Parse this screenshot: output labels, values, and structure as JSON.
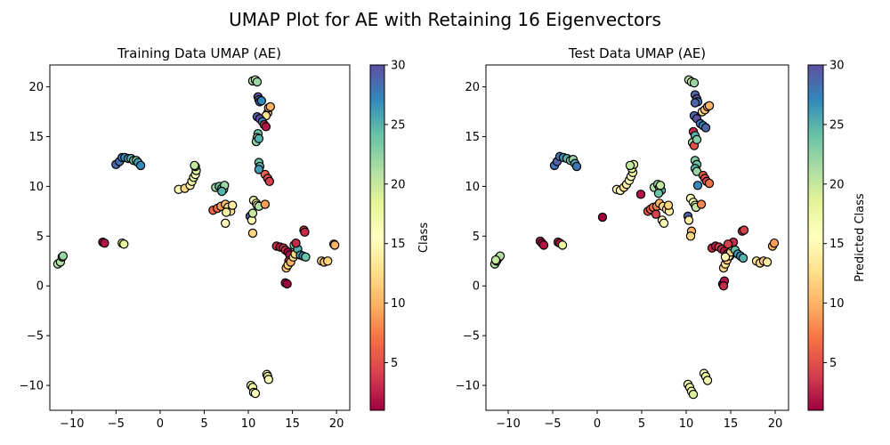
{
  "figure": {
    "title": "UMAP Plot for AE with Retaining 16 Eigenvectors"
  },
  "chart_data": [
    {
      "type": "scatter",
      "title": "Training Data UMAP (AE)",
      "xlabel": "",
      "ylabel": "",
      "xlim": [
        -12.5,
        21.5
      ],
      "ylim": [
        -12.5,
        22.2
      ],
      "xticks": [
        "−10",
        "−5",
        "0",
        "5",
        "10",
        "15",
        "20"
      ],
      "xtick_values": [
        -10,
        -5,
        0,
        5,
        10,
        15,
        20
      ],
      "yticks": [
        "−10",
        "−5",
        "0",
        "5",
        "10",
        "15",
        "20"
      ],
      "ytick_values": [
        -10,
        -5,
        0,
        5,
        10,
        15,
        20
      ],
      "colorbar": {
        "label": "Class",
        "min": 1,
        "max": 30,
        "ticks": [
          "5",
          "10",
          "15",
          "20",
          "25",
          "30"
        ],
        "tick_values": [
          5,
          10,
          15,
          20,
          25,
          30
        ]
      },
      "points": [
        [
          -11.6,
          2.2,
          21
        ],
        [
          -11.3,
          2.4,
          21
        ],
        [
          -11.1,
          2.9,
          22
        ],
        [
          -11.0,
          3.0,
          22
        ],
        [
          -6.5,
          4.4,
          2
        ],
        [
          -6.3,
          4.3,
          2
        ],
        [
          -4.3,
          4.3,
          18
        ],
        [
          -4.1,
          4.2,
          18
        ],
        [
          -5.0,
          12.2,
          29
        ],
        [
          -4.6,
          12.5,
          28
        ],
        [
          -4.3,
          12.9,
          28
        ],
        [
          -4.0,
          12.9,
          27
        ],
        [
          -3.6,
          12.8,
          26
        ],
        [
          -3.3,
          12.8,
          25
        ],
        [
          -3.0,
          12.6,
          24
        ],
        [
          -2.7,
          12.6,
          23
        ],
        [
          -2.5,
          12.4,
          26
        ],
        [
          -2.2,
          12.1,
          27
        ],
        [
          2.1,
          9.7,
          15
        ],
        [
          2.8,
          9.8,
          12
        ],
        [
          3.4,
          10.1,
          14
        ],
        [
          3.6,
          10.5,
          17
        ],
        [
          3.8,
          10.9,
          18
        ],
        [
          4.0,
          11.2,
          16
        ],
        [
          4.1,
          11.6,
          19
        ],
        [
          4.0,
          12.0,
          20
        ],
        [
          3.9,
          12.1,
          20
        ],
        [
          6.0,
          7.6,
          6
        ],
        [
          6.5,
          7.8,
          7
        ],
        [
          6.9,
          8.0,
          9
        ],
        [
          7.4,
          8.2,
          11
        ],
        [
          7.7,
          7.9,
          12
        ],
        [
          8.0,
          7.5,
          13
        ],
        [
          8.2,
          8.1,
          14
        ],
        [
          7.5,
          7.4,
          14
        ],
        [
          7.4,
          6.3,
          15
        ],
        [
          6.3,
          9.9,
          22
        ],
        [
          6.7,
          10.0,
          24
        ],
        [
          7.0,
          9.8,
          23
        ],
        [
          7.2,
          9.7,
          21
        ],
        [
          7.3,
          10.1,
          22
        ],
        [
          7.0,
          9.5,
          25
        ],
        [
          10.2,
          7.0,
          29
        ],
        [
          10.4,
          6.6,
          16
        ],
        [
          10.5,
          7.3,
          20
        ],
        [
          10.6,
          8.6,
          17
        ],
        [
          10.9,
          8.3,
          14
        ],
        [
          11.0,
          8.1,
          16
        ],
        [
          11.2,
          8.0,
          21
        ],
        [
          10.5,
          5.3,
          12
        ],
        [
          11.9,
          8.2,
          9
        ],
        [
          10.5,
          20.6,
          21
        ],
        [
          10.8,
          20.7,
          20
        ],
        [
          11.0,
          20.5,
          22
        ],
        [
          11.1,
          19.0,
          30
        ],
        [
          11.2,
          18.7,
          28
        ],
        [
          11.3,
          18.5,
          29
        ],
        [
          11.5,
          18.6,
          27
        ],
        [
          12.2,
          17.4,
          11
        ],
        [
          12.3,
          17.9,
          9
        ],
        [
          12.5,
          18.0,
          10
        ],
        [
          12.0,
          17.1,
          13
        ],
        [
          11.0,
          17.0,
          29
        ],
        [
          11.3,
          16.8,
          30
        ],
        [
          11.6,
          16.5,
          27
        ],
        [
          11.8,
          16.2,
          3
        ],
        [
          12.0,
          16.0,
          2
        ],
        [
          11.1,
          15.3,
          24
        ],
        [
          11.0,
          14.9,
          22
        ],
        [
          10.9,
          14.5,
          23
        ],
        [
          11.2,
          14.8,
          25
        ],
        [
          11.2,
          12.4,
          24
        ],
        [
          11.3,
          12.0,
          25
        ],
        [
          11.2,
          11.7,
          26
        ],
        [
          11.9,
          11.2,
          6
        ],
        [
          12.2,
          10.8,
          5
        ],
        [
          12.4,
          10.5,
          4
        ],
        [
          13.2,
          4.0,
          3
        ],
        [
          13.6,
          3.9,
          2
        ],
        [
          14.0,
          3.8,
          4
        ],
        [
          14.2,
          3.6,
          3
        ],
        [
          14.5,
          3.4,
          1
        ],
        [
          14.7,
          3.1,
          2
        ],
        [
          14.6,
          2.5,
          4
        ],
        [
          14.3,
          1.8,
          11
        ],
        [
          14.5,
          2.1,
          12
        ],
        [
          14.8,
          2.4,
          10
        ],
        [
          15.1,
          2.9,
          13
        ],
        [
          15.3,
          3.2,
          12
        ],
        [
          15.2,
          4.1,
          23
        ],
        [
          15.6,
          3.7,
          25
        ],
        [
          15.9,
          3.1,
          26
        ],
        [
          16.2,
          3.0,
          27
        ],
        [
          16.5,
          2.9,
          24
        ],
        [
          15.4,
          4.3,
          3
        ],
        [
          16.3,
          5.6,
          4
        ],
        [
          16.4,
          5.4,
          3
        ],
        [
          14.2,
          0.3,
          2
        ],
        [
          14.4,
          0.2,
          1
        ],
        [
          18.3,
          2.5,
          13
        ],
        [
          18.6,
          2.4,
          11
        ],
        [
          19.0,
          2.5,
          12
        ],
        [
          19.7,
          4.2,
          9
        ],
        [
          19.8,
          4.1,
          10
        ],
        [
          12.1,
          -8.9,
          17
        ],
        [
          12.2,
          -9.1,
          18
        ],
        [
          12.3,
          -9.4,
          16
        ],
        [
          10.3,
          -10.0,
          18
        ],
        [
          10.5,
          -10.2,
          17
        ],
        [
          10.6,
          -10.7,
          19
        ],
        [
          10.8,
          -10.8,
          16
        ]
      ]
    },
    {
      "type": "scatter",
      "title": "Test Data UMAP (AE)",
      "xlabel": "",
      "ylabel": "",
      "xlim": [
        -12.5,
        21.5
      ],
      "ylim": [
        -12.5,
        22.2
      ],
      "xticks": [
        "−10",
        "−5",
        "0",
        "5",
        "10",
        "15",
        "20"
      ],
      "xtick_values": [
        -10,
        -5,
        0,
        5,
        10,
        15,
        20
      ],
      "yticks": [
        "−10",
        "−5",
        "0",
        "5",
        "10",
        "15",
        "20"
      ],
      "ytick_values": [
        -10,
        -5,
        0,
        5,
        10,
        15,
        20
      ],
      "colorbar": {
        "label": "Predicted Class",
        "min": 1,
        "max": 30,
        "ticks": [
          "5",
          "10",
          "15",
          "20",
          "25",
          "30"
        ],
        "tick_values": [
          5,
          10,
          15,
          20,
          25,
          30
        ]
      },
      "points": [
        [
          -11.5,
          2.2,
          21
        ],
        [
          -11.3,
          2.5,
          22
        ],
        [
          -11.1,
          2.8,
          23
        ],
        [
          -10.9,
          3.0,
          21
        ],
        [
          -11.4,
          2.6,
          20
        ],
        [
          -6.4,
          4.5,
          2
        ],
        [
          -6.2,
          4.3,
          1
        ],
        [
          -6.0,
          4.1,
          2
        ],
        [
          -4.4,
          4.4,
          3
        ],
        [
          -4.2,
          4.3,
          2
        ],
        [
          -3.9,
          4.1,
          18
        ],
        [
          -4.8,
          12.1,
          28
        ],
        [
          -4.5,
          12.5,
          29
        ],
        [
          -4.2,
          13.0,
          28
        ],
        [
          -3.8,
          12.9,
          27
        ],
        [
          -3.4,
          12.8,
          25
        ],
        [
          -3.0,
          12.6,
          24
        ],
        [
          -2.7,
          12.7,
          22
        ],
        [
          -2.5,
          12.3,
          26
        ],
        [
          -2.3,
          12.0,
          28
        ],
        [
          2.2,
          9.7,
          15
        ],
        [
          2.6,
          9.6,
          16
        ],
        [
          3.0,
          9.9,
          13
        ],
        [
          3.3,
          10.2,
          14
        ],
        [
          3.6,
          10.6,
          15
        ],
        [
          3.8,
          11.0,
          16
        ],
        [
          4.0,
          11.4,
          17
        ],
        [
          3.9,
          11.8,
          18
        ],
        [
          4.1,
          12.2,
          19
        ],
        [
          3.7,
          12.1,
          20
        ],
        [
          0.6,
          6.9,
          1
        ],
        [
          4.9,
          9.2,
          2
        ],
        [
          5.7,
          7.5,
          5
        ],
        [
          6.0,
          7.7,
          6
        ],
        [
          6.3,
          7.9,
          7
        ],
        [
          6.7,
          8.0,
          8
        ],
        [
          7.0,
          8.3,
          10
        ],
        [
          7.4,
          8.0,
          12
        ],
        [
          7.8,
          7.7,
          13
        ],
        [
          8.1,
          7.5,
          14
        ],
        [
          8.0,
          8.1,
          12
        ],
        [
          7.3,
          6.6,
          15
        ],
        [
          7.5,
          6.3,
          16
        ],
        [
          6.6,
          7.2,
          4
        ],
        [
          6.4,
          9.9,
          21
        ],
        [
          6.8,
          10.2,
          22
        ],
        [
          7.0,
          9.9,
          23
        ],
        [
          7.2,
          9.6,
          25
        ],
        [
          6.9,
          9.3,
          24
        ],
        [
          7.1,
          10.1,
          20
        ],
        [
          10.2,
          7.0,
          29
        ],
        [
          10.3,
          6.6,
          14
        ],
        [
          10.5,
          8.8,
          16
        ],
        [
          10.8,
          8.4,
          17
        ],
        [
          11.0,
          8.1,
          18
        ],
        [
          11.1,
          7.9,
          20
        ],
        [
          10.6,
          5.5,
          10
        ],
        [
          10.5,
          5.0,
          12
        ],
        [
          11.7,
          8.2,
          8
        ],
        [
          11.3,
          10.1,
          27
        ],
        [
          10.3,
          20.7,
          21
        ],
        [
          10.6,
          20.5,
          19
        ],
        [
          10.9,
          20.4,
          22
        ],
        [
          11.0,
          19.2,
          29
        ],
        [
          11.2,
          18.8,
          30
        ],
        [
          11.3,
          18.5,
          28
        ],
        [
          11.0,
          18.4,
          29
        ],
        [
          11.8,
          17.5,
          13
        ],
        [
          12.1,
          17.7,
          11
        ],
        [
          12.4,
          18.0,
          9
        ],
        [
          12.6,
          18.1,
          10
        ],
        [
          10.9,
          17.1,
          29
        ],
        [
          11.2,
          16.8,
          30
        ],
        [
          11.6,
          16.3,
          28
        ],
        [
          11.9,
          16.1,
          27
        ],
        [
          12.2,
          15.9,
          29
        ],
        [
          10.8,
          15.5,
          3
        ],
        [
          11.0,
          15.1,
          25
        ],
        [
          10.7,
          14.4,
          21
        ],
        [
          10.9,
          14.1,
          5
        ],
        [
          11.2,
          14.7,
          23
        ],
        [
          11.0,
          12.6,
          23
        ],
        [
          11.2,
          12.2,
          24
        ],
        [
          11.0,
          11.8,
          25
        ],
        [
          11.2,
          11.5,
          22
        ],
        [
          11.9,
          11.1,
          6
        ],
        [
          12.1,
          10.8,
          5
        ],
        [
          12.3,
          10.5,
          4
        ],
        [
          12.6,
          10.3,
          7
        ],
        [
          12.9,
          3.8,
          3
        ],
        [
          13.3,
          4.0,
          2
        ],
        [
          13.7,
          3.9,
          4
        ],
        [
          14.0,
          3.7,
          3
        ],
        [
          14.3,
          3.5,
          2
        ],
        [
          14.6,
          3.2,
          1
        ],
        [
          14.9,
          3.0,
          3
        ],
        [
          14.2,
          1.8,
          12
        ],
        [
          14.4,
          2.2,
          13
        ],
        [
          14.6,
          2.6,
          11
        ],
        [
          14.8,
          3.0,
          14
        ],
        [
          15.0,
          3.4,
          12
        ],
        [
          14.4,
          2.9,
          15
        ],
        [
          15.1,
          4.0,
          22
        ],
        [
          15.5,
          3.6,
          24
        ],
        [
          15.8,
          3.2,
          26
        ],
        [
          16.1,
          3.0,
          27
        ],
        [
          16.4,
          2.8,
          25
        ],
        [
          15.3,
          4.4,
          3
        ],
        [
          14.7,
          4.2,
          4
        ],
        [
          16.3,
          5.5,
          3
        ],
        [
          16.5,
          5.6,
          4
        ],
        [
          14.1,
          0.2,
          1
        ],
        [
          14.3,
          0.5,
          2
        ],
        [
          14.2,
          0.0,
          3
        ],
        [
          17.9,
          2.5,
          13
        ],
        [
          18.3,
          2.3,
          12
        ],
        [
          18.7,
          2.5,
          11
        ],
        [
          19.1,
          2.4,
          14
        ],
        [
          19.7,
          4.0,
          10
        ],
        [
          19.9,
          4.3,
          9
        ],
        [
          12.0,
          -8.8,
          16
        ],
        [
          12.2,
          -9.1,
          18
        ],
        [
          12.4,
          -9.5,
          17
        ],
        [
          10.2,
          -9.9,
          17
        ],
        [
          10.4,
          -10.2,
          18
        ],
        [
          10.6,
          -10.6,
          16
        ],
        [
          10.8,
          -10.9,
          19
        ]
      ]
    }
  ]
}
